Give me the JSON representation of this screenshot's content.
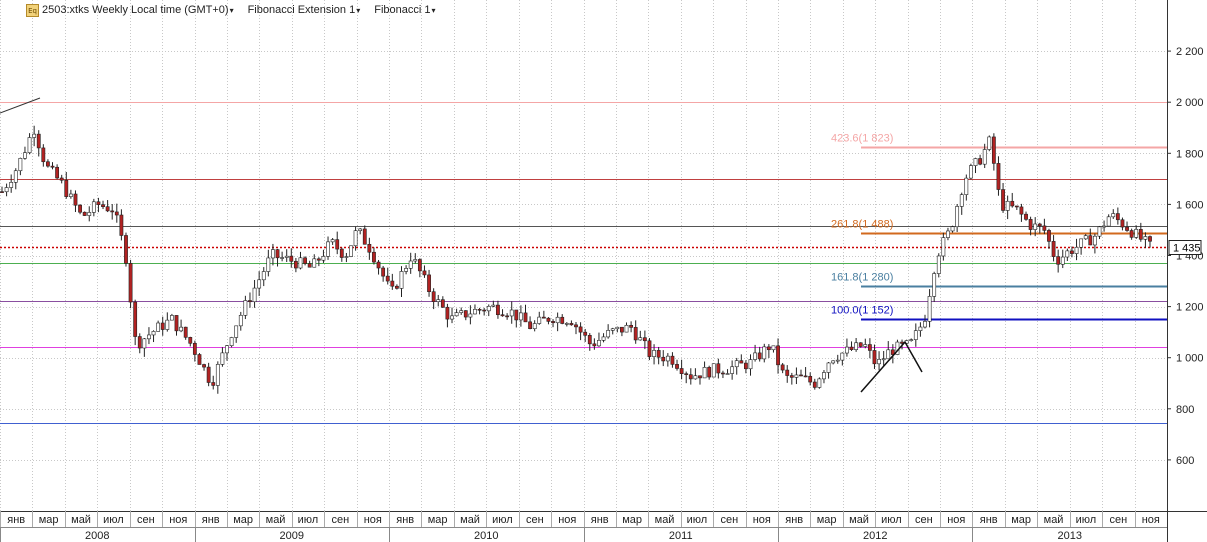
{
  "toolbar": {
    "icon_label": "Eq",
    "symbol_title": "2503:xtks Weekly Local time (GMT+0)",
    "menu1": "Fibonacci Extension 1",
    "menu2": "Fibonacci 1"
  },
  "colors": {
    "up_candle": "#ffffff",
    "down_candle": "#b22222",
    "last_price_line": "#cc0000",
    "price_label_bg": "#ffffff"
  },
  "chart_data": {
    "type": "candlestick",
    "title": "2503:xtks Weekly Local time (GMT+0)",
    "ylim": [
      400,
      2400
    ],
    "y_ticks": [
      "600",
      "800",
      "1 000",
      "1 200",
      "1 400",
      "1 600",
      "1 800",
      "2 000",
      "2 200"
    ],
    "y_tick_values": [
      600,
      800,
      1000,
      1200,
      1400,
      1600,
      1800,
      2000,
      2200
    ],
    "x_months": [
      "янв",
      "мар",
      "май",
      "июл",
      "сен",
      "ноя",
      "янв",
      "мар",
      "май",
      "июл",
      "сен",
      "ноя",
      "янв",
      "мар",
      "май",
      "июл",
      "сен",
      "ноя",
      "янв",
      "мар",
      "май",
      "июл",
      "сен",
      "ноя",
      "янв",
      "мар",
      "май",
      "июл",
      "сен",
      "ноя",
      "янв",
      "мар",
      "май",
      "июл",
      "сен",
      "ноя"
    ],
    "x_years": [
      "2008",
      "2009",
      "2010",
      "2011",
      "2012",
      "2013"
    ],
    "last_price": 1435,
    "last_price_label": "1 435",
    "horizontal_lines": [
      {
        "value": 2000,
        "color": "#f4a6a6"
      },
      {
        "value": 1700,
        "color": "#c04040"
      },
      {
        "value": 1515,
        "color": "#555555"
      },
      {
        "value": 1370,
        "color": "#4caf50"
      },
      {
        "value": 1220,
        "color": "#8a4fa0"
      },
      {
        "value": 1040,
        "color": "#e040e0"
      },
      {
        "value": 745,
        "color": "#4060d0"
      }
    ],
    "fibonacci_levels": [
      {
        "label": "423.6(1 823)",
        "value": 1823,
        "color": "#f4a6a6"
      },
      {
        "label": "261.8(1 488)",
        "value": 1488,
        "color": "#d2691e"
      },
      {
        "label": "161.8(1 280)",
        "value": 1280,
        "color": "#4a7fa0"
      },
      {
        "label": "100.0(1 152)",
        "value": 1152,
        "color": "#1010c0"
      }
    ],
    "price_path": [
      {
        "t": 0.0,
        "v": 1650
      },
      {
        "t": 0.8,
        "v": 1750
      },
      {
        "t": 1.6,
        "v": 1900
      },
      {
        "t": 2.2,
        "v": 1750
      },
      {
        "t": 3.0,
        "v": 1680
      },
      {
        "t": 4.0,
        "v": 1550
      },
      {
        "t": 4.8,
        "v": 1600
      },
      {
        "t": 5.6,
        "v": 1580
      },
      {
        "t": 6.2,
        "v": 1400
      },
      {
        "t": 6.7,
        "v": 1050
      },
      {
        "t": 7.5,
        "v": 1100
      },
      {
        "t": 8.5,
        "v": 1150
      },
      {
        "t": 9.5,
        "v": 1050
      },
      {
        "t": 10.5,
        "v": 900
      },
      {
        "t": 11.5,
        "v": 1100
      },
      {
        "t": 12.5,
        "v": 1250
      },
      {
        "t": 13.5,
        "v": 1400
      },
      {
        "t": 14.5,
        "v": 1380
      },
      {
        "t": 15.5,
        "v": 1350
      },
      {
        "t": 16.5,
        "v": 1450
      },
      {
        "t": 17.2,
        "v": 1400
      },
      {
        "t": 17.8,
        "v": 1500
      },
      {
        "t": 18.5,
        "v": 1420
      },
      {
        "t": 19.5,
        "v": 1250
      },
      {
        "t": 20.5,
        "v": 1400
      },
      {
        "t": 21.5,
        "v": 1250
      },
      {
        "t": 22.5,
        "v": 1150
      },
      {
        "t": 23.5,
        "v": 1180
      },
      {
        "t": 24.5,
        "v": 1200
      },
      {
        "t": 25.5,
        "v": 1180
      },
      {
        "t": 26.5,
        "v": 1120
      },
      {
        "t": 27.5,
        "v": 1160
      },
      {
        "t": 28.5,
        "v": 1150
      },
      {
        "t": 29.5,
        "v": 1050
      },
      {
        "t": 30.5,
        "v": 1100
      },
      {
        "t": 31.5,
        "v": 1120
      },
      {
        "t": 32.5,
        "v": 1010
      },
      {
        "t": 33.5,
        "v": 1000
      },
      {
        "t": 34.5,
        "v": 930
      },
      {
        "t": 35.5,
        "v": 950
      },
      {
        "t": 36.5,
        "v": 960
      },
      {
        "t": 37.5,
        "v": 980
      },
      {
        "t": 38.5,
        "v": 1050
      },
      {
        "t": 39.2,
        "v": 920
      },
      {
        "t": 40.0,
        "v": 920
      },
      {
        "t": 40.7,
        "v": 900
      },
      {
        "t": 41.5,
        "v": 1000
      },
      {
        "t": 42.5,
        "v": 1030
      },
      {
        "t": 43.2,
        "v": 1050
      },
      {
        "t": 43.8,
        "v": 970
      },
      {
        "t": 44.5,
        "v": 1030
      },
      {
        "t": 45.5,
        "v": 1050
      },
      {
        "t": 46.2,
        "v": 1150
      },
      {
        "t": 46.8,
        "v": 1400
      },
      {
        "t": 47.5,
        "v": 1500
      },
      {
        "t": 48.2,
        "v": 1700
      },
      {
        "t": 49.0,
        "v": 1780
      },
      {
        "t": 49.5,
        "v": 1850
      },
      {
        "t": 50.0,
        "v": 1600
      },
      {
        "t": 50.8,
        "v": 1580
      },
      {
        "t": 51.5,
        "v": 1520
      },
      {
        "t": 52.2,
        "v": 1500
      },
      {
        "t": 52.8,
        "v": 1380
      },
      {
        "t": 53.5,
        "v": 1420
      },
      {
        "t": 54.2,
        "v": 1450
      },
      {
        "t": 54.8,
        "v": 1480
      },
      {
        "t": 55.5,
        "v": 1560
      },
      {
        "t": 56.2,
        "v": 1520
      },
      {
        "t": 56.8,
        "v": 1480
      },
      {
        "t": 57.5,
        "v": 1435
      }
    ]
  }
}
